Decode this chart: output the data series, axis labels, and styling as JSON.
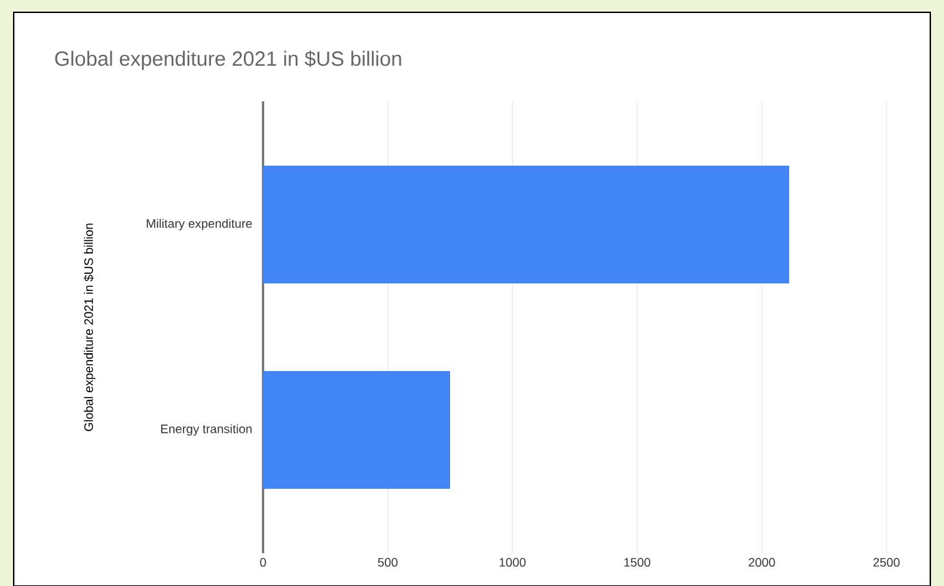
{
  "chart_data": {
    "type": "bar",
    "orientation": "horizontal",
    "title": "Global expenditure 2021 in $US billion",
    "ylabel": "Global expenditure 2021 in $US billion",
    "categories": [
      "Military expenditure",
      "Energy transition"
    ],
    "values": [
      2110,
      750
    ],
    "color": "#4285f4",
    "xlim": [
      0,
      2500
    ],
    "xticks": [
      0,
      500,
      1000,
      1500,
      2000,
      2500
    ],
    "grid": "x"
  }
}
